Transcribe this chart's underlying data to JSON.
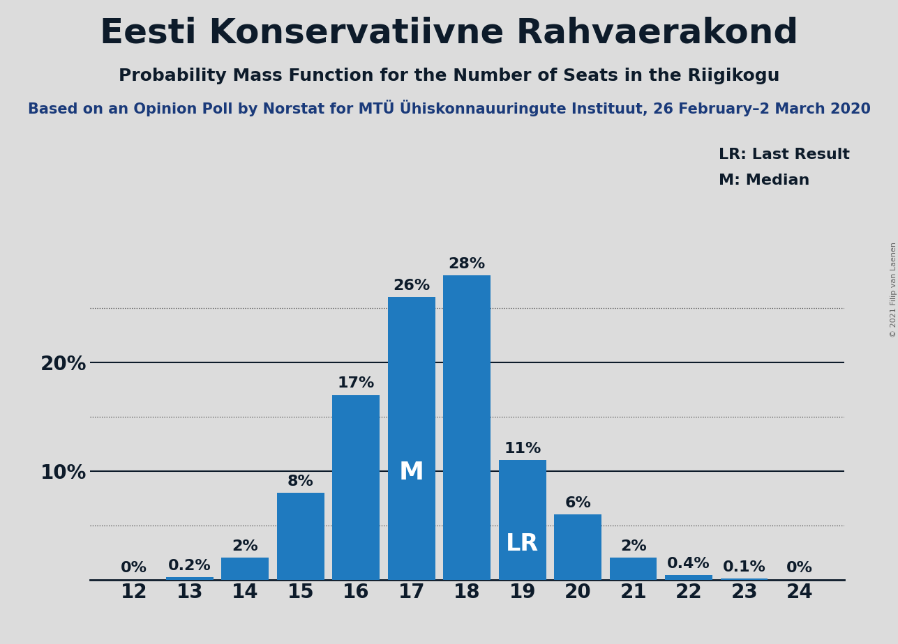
{
  "title": "Eesti Konservatiivne Rahvaerakond",
  "subtitle": "Probability Mass Function for the Number of Seats in the Riigikogu",
  "source_line": "Based on an Opinion Poll by Norstat for MTÜ Ühiskonnauuringute Instituut, 26 February–2 March 2020",
  "copyright": "© 2021 Filip van Laenen",
  "seats": [
    12,
    13,
    14,
    15,
    16,
    17,
    18,
    19,
    20,
    21,
    22,
    23,
    24
  ],
  "probabilities": [
    0.0,
    0.2,
    2.0,
    8.0,
    17.0,
    26.0,
    28.0,
    11.0,
    6.0,
    2.0,
    0.4,
    0.1,
    0.0
  ],
  "bar_color": "#1f7abf",
  "background_color": "#dcdcdc",
  "text_color": "#0d1b2a",
  "median_seat": 17,
  "last_result_seat": 19,
  "label_lr": "LR",
  "label_m": "M",
  "legend_lr": "LR: Last Result",
  "legend_m": "M: Median",
  "ylim": [
    0,
    32
  ],
  "yticks": [
    10,
    20
  ],
  "ytick_labels": [
    "10%",
    "20%"
  ],
  "dotted_lines": [
    5,
    15,
    25
  ],
  "solid_lines": [
    10,
    20
  ],
  "title_fontsize": 36,
  "subtitle_fontsize": 18,
  "source_fontsize": 15,
  "bar_label_fontsize": 16,
  "axis_label_fontsize": 20,
  "inner_label_fontsize": 22,
  "legend_fontsize": 16
}
